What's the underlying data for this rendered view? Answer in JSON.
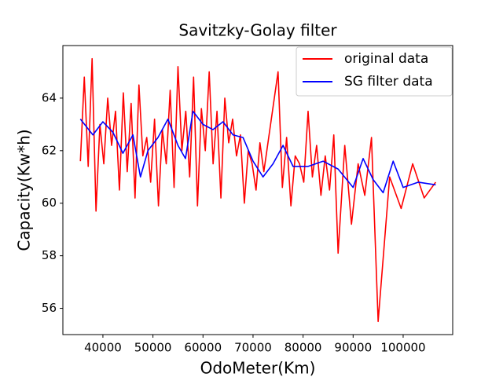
{
  "chart_data": {
    "type": "line",
    "title": "Savitzky-Golay filter",
    "xlabel": "OdoMeter(Km)",
    "ylabel": "Capacity(Kw*h)",
    "xlim": [
      32000,
      109900
    ],
    "ylim": [
      55.0,
      66.0
    ],
    "xticks": [
      40000,
      50000,
      60000,
      70000,
      80000,
      90000,
      100000
    ],
    "yticks": [
      56,
      58,
      60,
      62,
      64
    ],
    "legend": "upper right",
    "grid": false,
    "series": [
      {
        "name": "original data",
        "color": "#ff0000",
        "x": [
          35500,
          36280,
          37060,
          37840,
          38620,
          39400,
          40180,
          40960,
          41740,
          42520,
          43300,
          44080,
          44860,
          45640,
          46420,
          47200,
          47980,
          48760,
          49540,
          50320,
          51100,
          51880,
          52660,
          53440,
          54220,
          55000,
          55780,
          56560,
          57340,
          58120,
          58900,
          59680,
          60460,
          61240,
          62020,
          62800,
          63580,
          64360,
          65140,
          65920,
          66700,
          67480,
          68260,
          69040,
          69820,
          70600,
          71380,
          72160,
          75000,
          75860,
          76710,
          77570,
          78430,
          79290,
          80140,
          81000,
          81860,
          82710,
          83570,
          84430,
          85290,
          86140,
          87000,
          88330,
          89670,
          91000,
          92330,
          93670,
          95000,
          97300,
          99600,
          101900,
          104200,
          106500
        ],
        "values": [
          61.6,
          64.8,
          61.4,
          65.5,
          59.7,
          63.0,
          61.5,
          64.0,
          62.2,
          63.5,
          60.5,
          64.2,
          61.2,
          63.8,
          60.2,
          64.5,
          61.8,
          62.5,
          60.8,
          63.2,
          59.9,
          62.8,
          61.5,
          64.3,
          60.6,
          65.2,
          62.0,
          63.5,
          61.0,
          64.8,
          59.9,
          63.6,
          62.0,
          65.0,
          61.5,
          63.5,
          60.2,
          64.0,
          62.3,
          63.2,
          61.8,
          62.6,
          60.0,
          62.0,
          61.5,
          60.5,
          62.3,
          61.2,
          65.0,
          60.6,
          62.5,
          59.9,
          61.8,
          61.5,
          60.8,
          63.5,
          61.0,
          62.2,
          60.3,
          61.8,
          60.5,
          62.6,
          58.1,
          62.2,
          59.2,
          61.5,
          60.3,
          62.5,
          55.5,
          61.0,
          59.8,
          61.5,
          60.2,
          60.8
        ]
      },
      {
        "name": "SG filter data",
        "color": "#0000ff",
        "x": [
          35500,
          38000,
          40000,
          42000,
          44000,
          46000,
          47500,
          49000,
          51000,
          53000,
          55000,
          56500,
          58000,
          60000,
          62000,
          64000,
          66000,
          68000,
          70000,
          72000,
          74000,
          76000,
          78000,
          81000,
          84000,
          87000,
          90000,
          92000,
          94000,
          96000,
          98000,
          100000,
          103000,
          106500
        ],
        "values": [
          63.2,
          62.6,
          63.1,
          62.7,
          61.9,
          62.6,
          61.0,
          62.0,
          62.5,
          63.2,
          62.2,
          61.7,
          63.5,
          63.0,
          62.8,
          63.1,
          62.6,
          62.5,
          61.6,
          61.0,
          61.5,
          62.2,
          61.4,
          61.4,
          61.6,
          61.3,
          60.6,
          61.7,
          60.9,
          60.4,
          61.6,
          60.6,
          60.8,
          60.7
        ]
      }
    ]
  }
}
